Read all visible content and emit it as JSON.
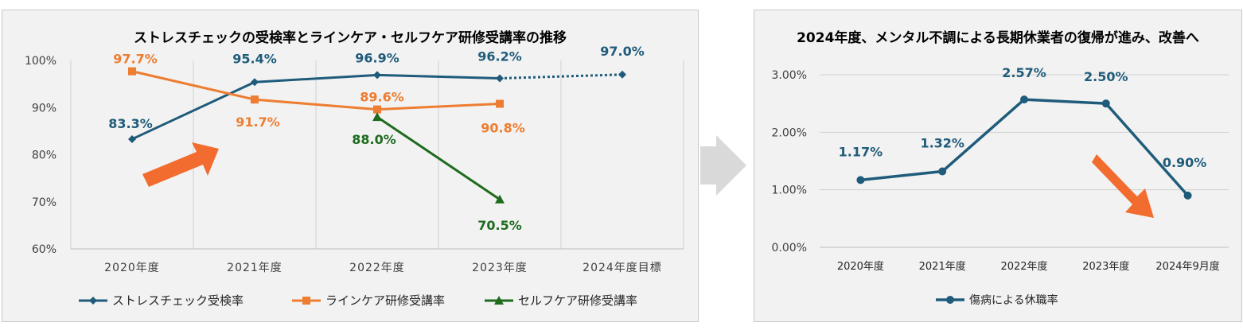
{
  "chart_data": [
    {
      "type": "line",
      "title": "ストレスチェックの受検率とラインケア・セルフケア研修受講率の推移",
      "categories": [
        "2020年度",
        "2021年度",
        "2022年度",
        "2023年度",
        "2024年度目標"
      ],
      "y_ticks": [
        "60%",
        "70%",
        "80%",
        "90%",
        "100%"
      ],
      "ylim": [
        60,
        100
      ],
      "grid": "vertical",
      "legend_position": "bottom",
      "series": [
        {
          "name": "ストレスチェック受検率",
          "values": [
            83.3,
            95.4,
            96.9,
            96.2,
            97.0
          ],
          "labels": [
            "83.3%",
            "95.4%",
            "96.9%",
            "96.2%",
            "97.0%"
          ],
          "color": "#1f5b7a",
          "marker": "diamond",
          "dashed_last_segment": true
        },
        {
          "name": "ラインケア研修受講率",
          "values": [
            97.7,
            91.7,
            89.6,
            90.8,
            null
          ],
          "labels": [
            "97.7%",
            "91.7%",
            "89.6%",
            "90.8%",
            ""
          ],
          "color": "#ed7d31",
          "marker": "square"
        },
        {
          "name": "セルフケア研修受講率",
          "values": [
            null,
            null,
            88.0,
            70.5,
            null
          ],
          "labels": [
            "",
            "",
            "88.0%",
            "70.5%",
            ""
          ],
          "color": "#1e6b1e",
          "marker": "triangle"
        }
      ]
    },
    {
      "type": "line",
      "title": "2024年度、メンタル不調による長期休業者の復帰が進み、改善へ",
      "categories": [
        "2020年度",
        "2021年度",
        "2022年度",
        "2023年度",
        "2024年9月度"
      ],
      "y_ticks": [
        "0.00%",
        "1.00%",
        "2.00%",
        "3.00%"
      ],
      "ylim": [
        0,
        3
      ],
      "grid": "horizontal",
      "legend_position": "bottom",
      "series": [
        {
          "name": "傷病による休職率",
          "values": [
            1.17,
            1.32,
            2.57,
            2.5,
            0.9
          ],
          "labels": [
            "1.17%",
            "1.32%",
            "2.57%",
            "2.50%",
            "0.90%"
          ],
          "color": "#1f5b7a",
          "marker": "circle"
        }
      ]
    }
  ],
  "colors": {
    "accent_arrow": "#f26c2f",
    "middle_arrow": "#d9d9d9",
    "gridline": "#d0d0d0"
  },
  "icons": {
    "left_arrow": "up-right-arrow",
    "right_arrow": "down-right-arrow",
    "middle": "right-chevron-arrow"
  }
}
